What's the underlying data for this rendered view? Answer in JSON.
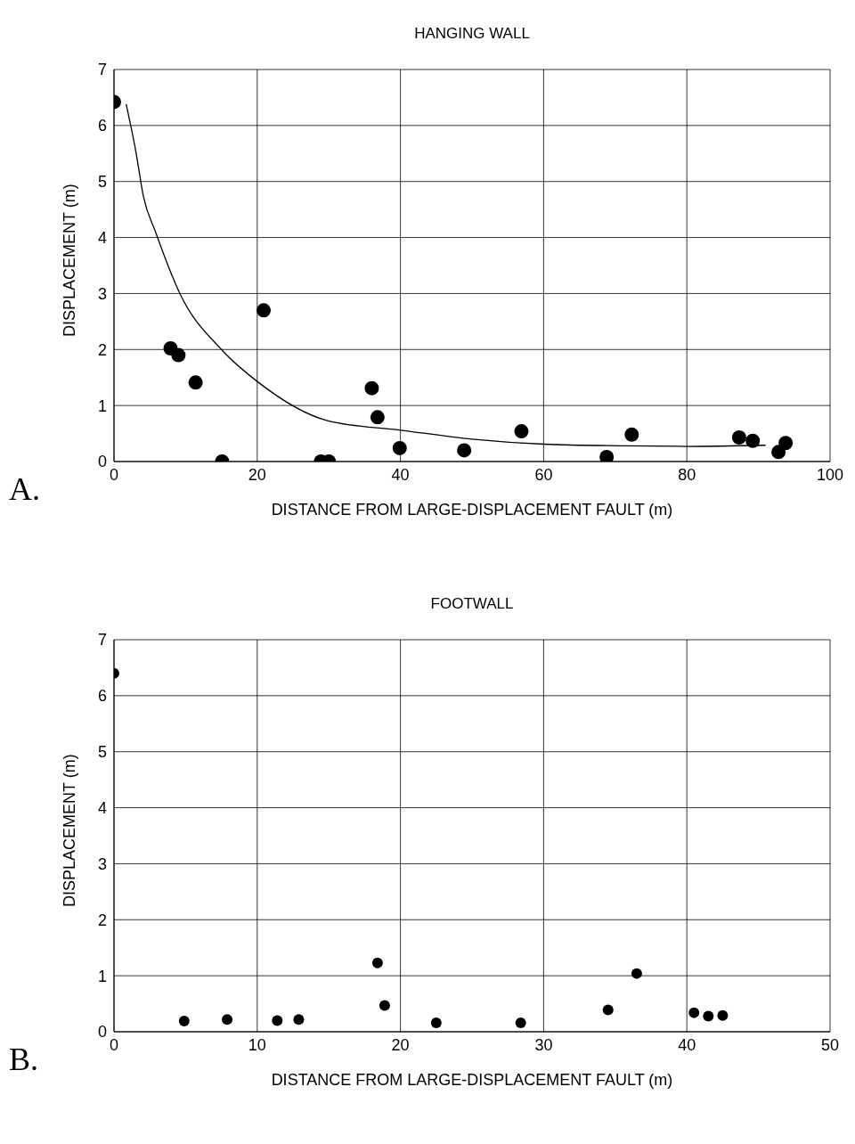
{
  "chart_data": [
    {
      "type": "scatter",
      "title": "HANGING WALL",
      "xlabel": "DISTANCE FROM LARGE-DISPLACEMENT FAULT (m)",
      "ylabel": "DISPLACEMENT (m)",
      "annotations": [
        "A."
      ],
      "xlim": [
        0,
        100
      ],
      "xticks": [
        0,
        20,
        40,
        60,
        80,
        100
      ],
      "ylim": [
        0,
        7
      ],
      "yticks": [
        0,
        1,
        2,
        3,
        4,
        5,
        6,
        7
      ],
      "grid": true,
      "series": [
        {
          "color": "#000000",
          "marker": "circle",
          "x": [
            0,
            7.9,
            9.0,
            11.4,
            15.1,
            20.9,
            28.9,
            30.0,
            36.0,
            36.8,
            39.9,
            48.9,
            56.9,
            68.8,
            72.3,
            87.3,
            89.2,
            92.8,
            93.8
          ],
          "values": [
            6.42,
            2.02,
            1.9,
            1.41,
            0,
            2.7,
            0,
            0,
            1.31,
            0.79,
            0.24,
            0.2,
            0.54,
            0.08,
            0.48,
            0.43,
            0.37,
            0.17,
            0.33
          ]
        },
        {
          "type": "line",
          "color": "#000000",
          "x": [
            1.7,
            3.1,
            4.1,
            5.8,
            9.2,
            15,
            20,
            29.8,
            40,
            50,
            60,
            71,
            80,
            91
          ],
          "values": [
            6.38,
            5.5,
            4.74,
            4.1,
            3.0,
            2.0,
            1.43,
            0.73,
            0.56,
            0.4,
            0.31,
            0.28,
            0.27,
            0.29
          ]
        }
      ]
    },
    {
      "type": "scatter",
      "title": "FOOTWALL",
      "xlabel": "DISTANCE FROM LARGE-DISPLACEMENT FAULT (m)",
      "ylabel": "DISPLACEMENT (m)",
      "annotations": [
        "B."
      ],
      "xlim": [
        0,
        50
      ],
      "xticks": [
        0,
        10,
        20,
        30,
        40,
        50
      ],
      "ylim": [
        0,
        7
      ],
      "yticks": [
        0,
        1,
        2,
        3,
        4,
        5,
        6,
        7
      ],
      "grid": true,
      "series": [
        {
          "color": "#000000",
          "marker": "circle",
          "x": [
            0,
            4.9,
            7.9,
            11.4,
            12.9,
            18.4,
            18.9,
            22.5,
            28.4,
            34.5,
            36.5,
            40.5,
            41.5,
            42.5
          ],
          "values": [
            6.4,
            0.19,
            0.22,
            0.2,
            0.22,
            1.23,
            0.47,
            0.16,
            0.16,
            0.39,
            1.04,
            0.34,
            0.28,
            0.29
          ]
        }
      ]
    }
  ]
}
